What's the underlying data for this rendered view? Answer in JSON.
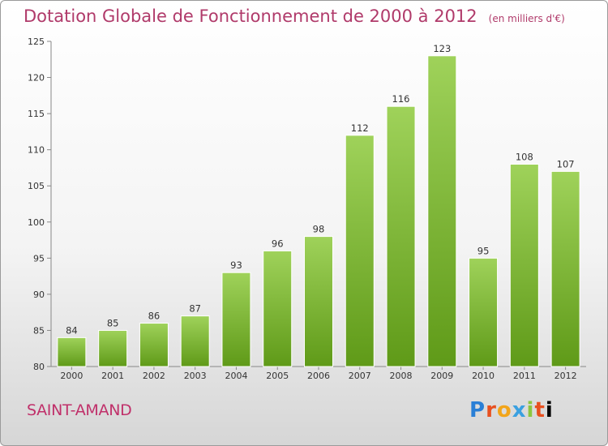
{
  "header": {
    "title": "Dotation Globale de Fonctionnement de 2000 à 2012",
    "unit": "(en milliers d'€)"
  },
  "footer": {
    "commune": "SAINT-AMAND",
    "logo": "Proxiti"
  },
  "colors": {
    "bar_top": "#9fd25a",
    "bar_bottom": "#5f9a18",
    "title": "#b03a6a",
    "commune": "#c0306a"
  },
  "chart_data": {
    "type": "bar",
    "title": "Dotation Globale de Fonctionnement de 2000 à 2012",
    "subtitle": "(en milliers d'€)",
    "categories": [
      "2000",
      "2001",
      "2002",
      "2003",
      "2004",
      "2005",
      "2006",
      "2007",
      "2008",
      "2009",
      "2010",
      "2011",
      "2012"
    ],
    "values": [
      84,
      85,
      86,
      87,
      93,
      96,
      98,
      112,
      116,
      123,
      95,
      108,
      107
    ],
    "ylim": [
      80,
      125
    ],
    "yticks": [
      80,
      85,
      90,
      95,
      100,
      105,
      110,
      115,
      120,
      125
    ],
    "grid": false,
    "legend": "none"
  }
}
